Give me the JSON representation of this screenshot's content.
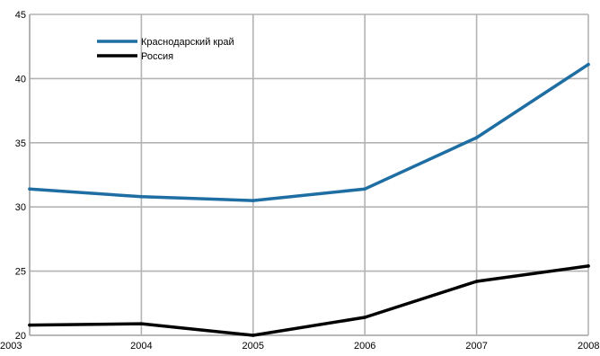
{
  "chart_data": {
    "type": "line",
    "x": [
      "2003",
      "2004",
      "2005",
      "2006",
      "2007",
      "2008"
    ],
    "series": [
      {
        "name": "Краснодарский край",
        "color": "#1f6ea3",
        "values": [
          31.4,
          30.8,
          30.5,
          31.4,
          35.4,
          41.1
        ]
      },
      {
        "name": "Россия",
        "color": "#000000",
        "values": [
          20.8,
          20.9,
          20.0,
          21.4,
          24.2,
          25.4
        ]
      }
    ],
    "yticks": [
      "20",
      "25",
      "30",
      "35",
      "40",
      "45"
    ],
    "ylim": [
      20,
      45
    ],
    "grid": true,
    "legend_position": "top-left"
  }
}
